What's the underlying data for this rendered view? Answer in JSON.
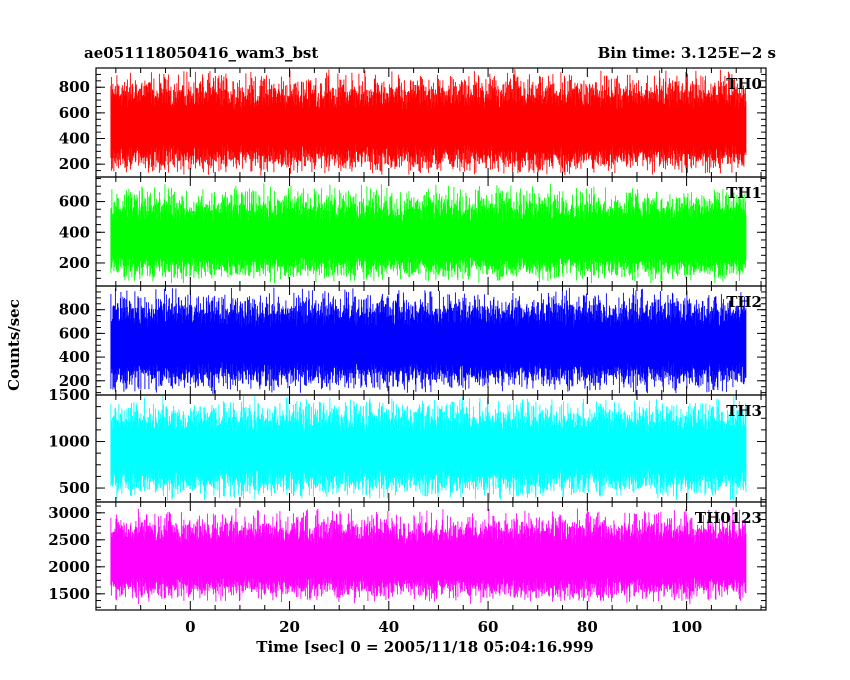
{
  "header": {
    "title": "ae051118050416_wam3_bst",
    "bin_time": "Bin time: 3.125E−2 s"
  },
  "chart_data": {
    "type": "line",
    "xlabel": "Time [sec] 0 = 2005/11/18 05:04:16.999",
    "ylabel": "Counts/sec",
    "xlim": [
      -19,
      116
    ],
    "x_ticks": [
      0,
      20,
      40,
      60,
      80,
      100
    ],
    "data_x_range": [
      -16,
      112
    ],
    "bin_time_s": 0.03125,
    "grid": false,
    "panels": [
      {
        "name": "TH0",
        "color": "#ff0000",
        "ylim": [
          100,
          950
        ],
        "y_ticks": [
          200,
          400,
          600,
          800
        ],
        "typical_range": [
          100,
          950
        ],
        "mean": 480
      },
      {
        "name": "TH1",
        "color": "#00ff00",
        "ylim": [
          50,
          760
        ],
        "y_ticks": [
          200,
          400,
          600
        ],
        "typical_range": [
          60,
          720
        ],
        "mean": 350
      },
      {
        "name": "TH2",
        "color": "#0000ff",
        "ylim": [
          80,
          1000
        ],
        "y_ticks": [
          200,
          400,
          600,
          800
        ],
        "typical_range": [
          80,
          1000
        ],
        "mean": 500
      },
      {
        "name": "TH3",
        "color": "#00ffff",
        "ylim": [
          350,
          1500
        ],
        "y_ticks": [
          500,
          1000,
          1500
        ],
        "typical_range": [
          350,
          1500
        ],
        "mean": 900
      },
      {
        "name": "TH0123",
        "color": "#ff00ff",
        "ylim": [
          1200,
          3200
        ],
        "y_ticks": [
          1500,
          2000,
          2500,
          3000
        ],
        "typical_range": [
          1300,
          3100
        ],
        "mean": 2100
      }
    ]
  }
}
